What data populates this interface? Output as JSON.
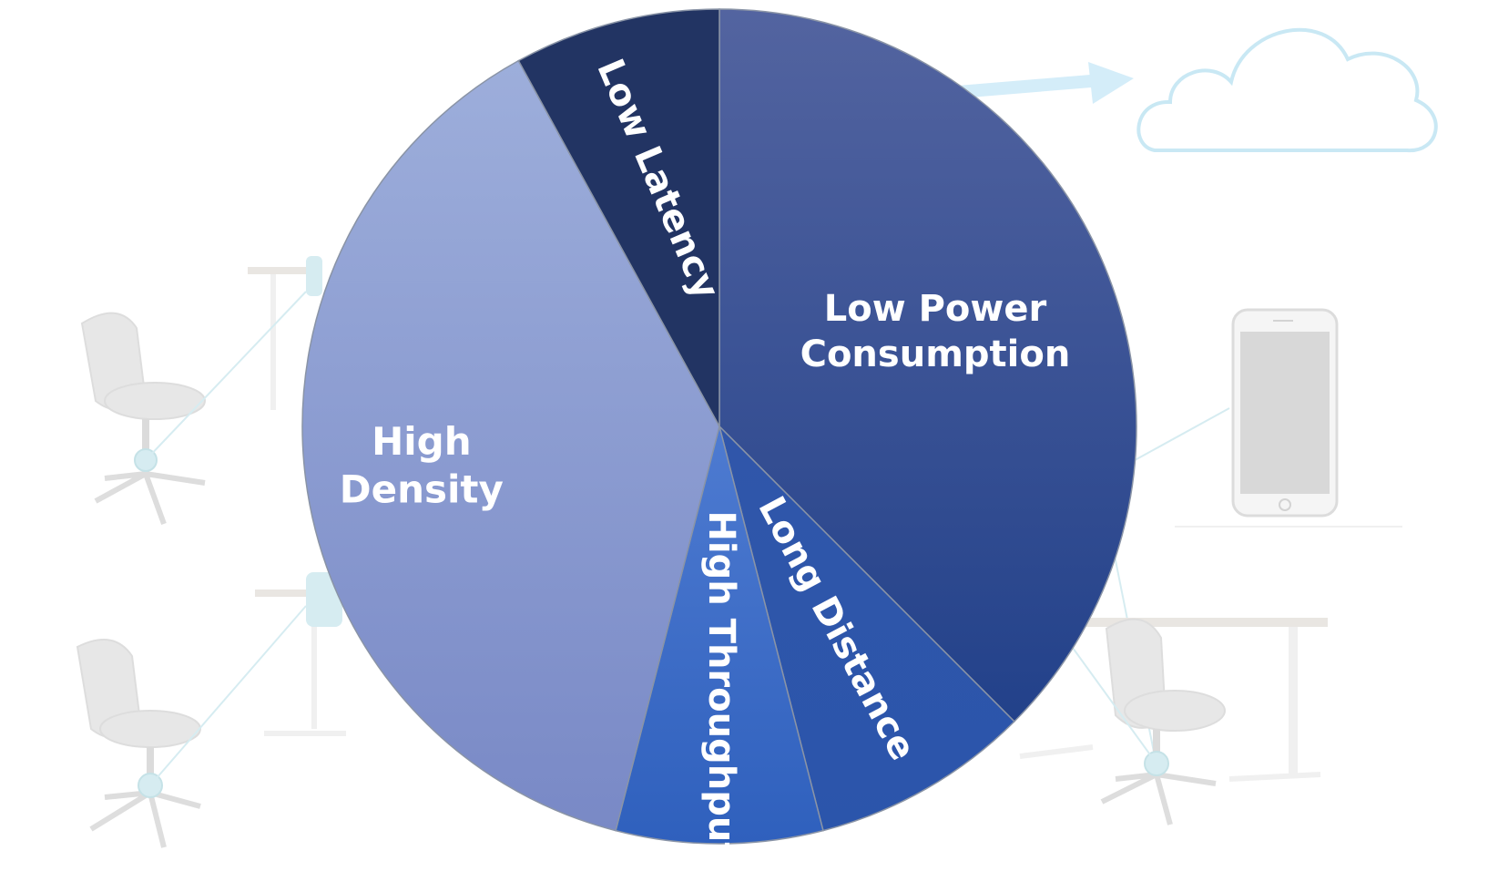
{
  "colors": {
    "background": "#ffffff",
    "faded_scene": "#dfe3e5",
    "scene_accent": "#cfe9ef",
    "cloud_outline": "#bfe4f2",
    "arrow": "#cdeaf8",
    "slice_border": "#8a94a6"
  },
  "background_scene": {
    "icons": [
      "office-chair-icon",
      "standing-desk-icon",
      "flame-badge-icon",
      "cloud-icon",
      "arrow-icon",
      "smartphone-icon",
      "bluetooth-icon"
    ]
  },
  "chart_data": {
    "type": "pie",
    "title": "",
    "slices": [
      {
        "label": "Low Power Consumption",
        "value": 37.5,
        "color_top": "#5364a0",
        "color_bottom": "#22418a"
      },
      {
        "label": "Long Distance",
        "value": 8.5,
        "color_top": "#3056aa",
        "color_bottom": "#2b55ab"
      },
      {
        "label": "High Throughput",
        "value": 8.0,
        "color_top": "#4e7bd1",
        "color_bottom": "#2f60bd"
      },
      {
        "label": "High Density",
        "value": 38.0,
        "color_top": "#9daedb",
        "color_bottom": "#7989c6"
      },
      {
        "label": "Low Latency",
        "value": 8.0,
        "color_top": "#223463",
        "color_bottom": "#223463"
      }
    ]
  }
}
